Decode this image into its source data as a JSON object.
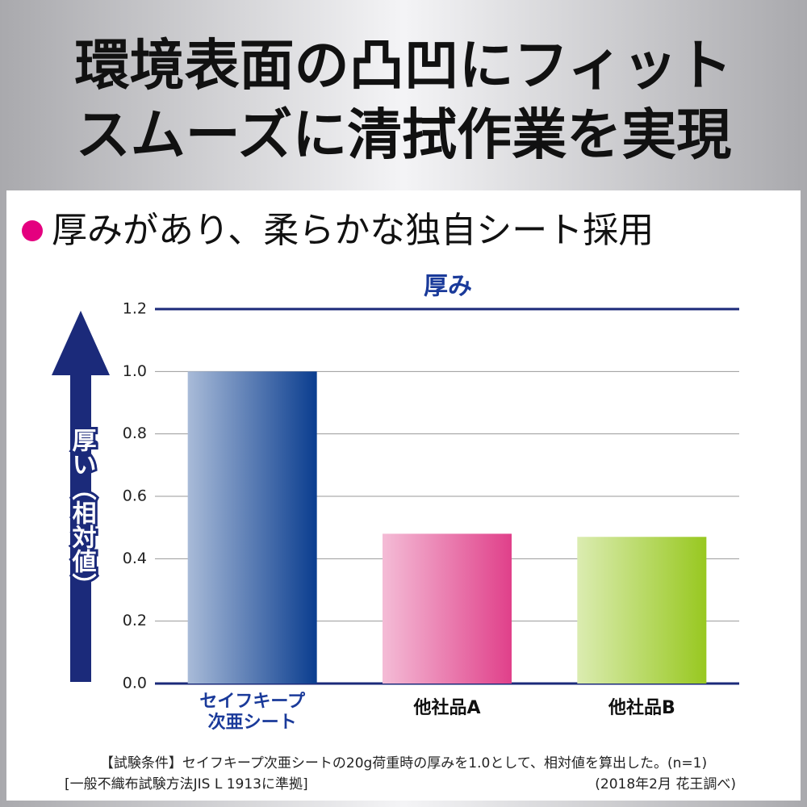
{
  "header": {
    "title_lines": [
      "環境表面の凸凹にフィット",
      "スムーズに清拭作業を実現"
    ],
    "subtitle": "厚みがあり、柔らかな独自シート採用"
  },
  "chart_data": {
    "type": "bar",
    "title": "厚み",
    "y_label": "厚い（相対値）",
    "categories": [
      "セイフキープ\n次亜シート",
      "他社品A",
      "他社品B"
    ],
    "values": [
      1.0,
      0.48,
      0.47
    ],
    "colors": [
      "#0a3d8f",
      "#e0408a",
      "#98c820"
    ],
    "ylim": [
      0,
      1.2
    ],
    "yticks": [
      {
        "value": 0,
        "label": "0.0"
      },
      0.2,
      0.4,
      0.6,
      0.8,
      {
        "value": 1,
        "label": "1.0"
      },
      1.2
    ],
    "grid": true
  },
  "notes": [
    "【試験条件】セイフキープ次亜シートの20g荷重時の厚みを1.0として、相対値を算出した。(n=1)",
    "[一般不織布試験方法JIS L 1913に準拠]",
    "(2018年2月 花王調べ)"
  ]
}
